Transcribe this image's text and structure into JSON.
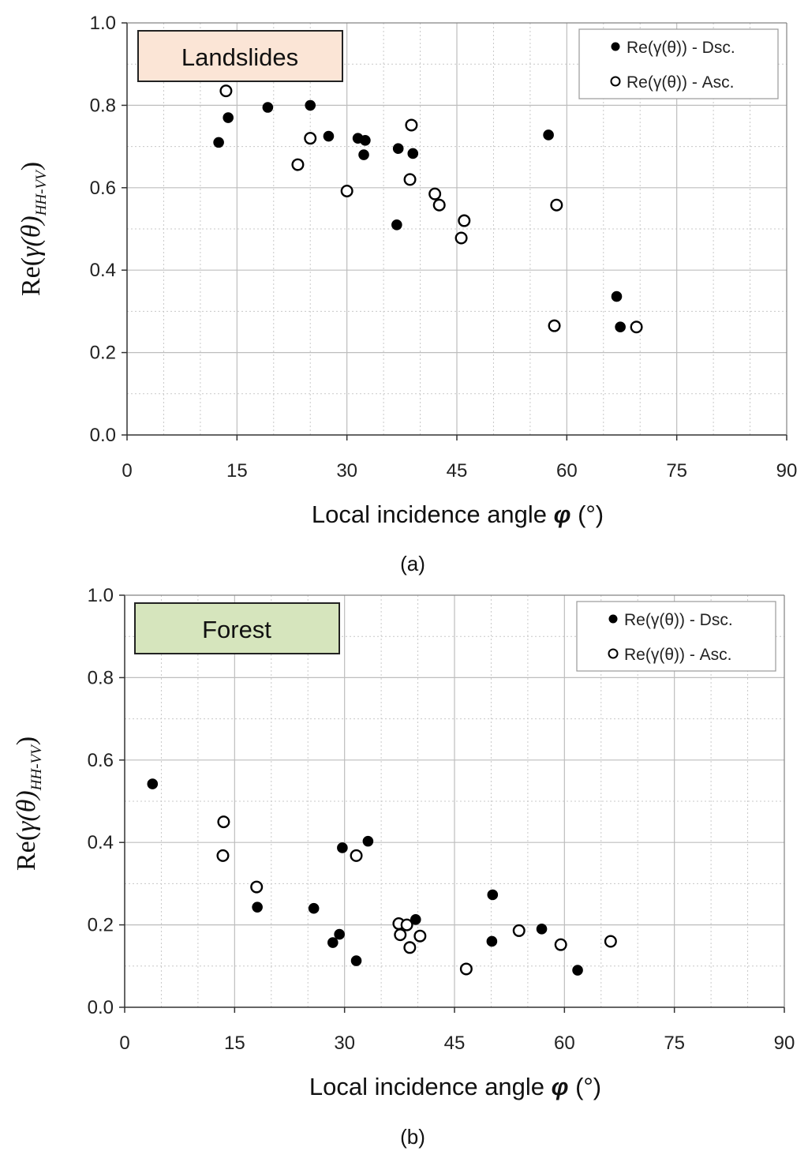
{
  "chart_data": [
    {
      "type": "scatter",
      "title": "Landslides",
      "title_bg": "#fbe5d6",
      "subtitle": "(a)",
      "xlabel_prefix": "Local incidence angle ",
      "xlabel_symbol": "φ",
      "xlabel_suffix": " (°)",
      "ylabel_prefix": "Re(",
      "ylabel_symbol": "γ(θ)",
      "ylabel_subscript": "HH-VV",
      "ylabel_suffix": ")",
      "xlim": [
        0,
        90
      ],
      "ylim": [
        0,
        1.0
      ],
      "xticks": [
        "0",
        "15",
        "30",
        "45",
        "60",
        "75",
        "90"
      ],
      "yticks": [
        "0.0",
        "0.2",
        "0.4",
        "0.6",
        "0.8",
        "1.0"
      ],
      "grid": true,
      "legend_position": "top-right",
      "series": [
        {
          "name": "Re(γ(θ)) - Dsc.",
          "marker": "filled-circle",
          "points": [
            [
              12.5,
              0.71
            ],
            [
              13.8,
              0.77
            ],
            [
              19.2,
              0.795
            ],
            [
              25.0,
              0.8
            ],
            [
              27.5,
              0.725
            ],
            [
              31.5,
              0.72
            ],
            [
              32.5,
              0.715
            ],
            [
              32.3,
              0.68
            ],
            [
              37.0,
              0.695
            ],
            [
              39.0,
              0.683
            ],
            [
              36.8,
              0.51
            ],
            [
              57.5,
              0.728
            ],
            [
              66.8,
              0.336
            ],
            [
              67.3,
              0.262
            ]
          ]
        },
        {
          "name": "Re(γ(θ)) - Asc.",
          "marker": "open-circle",
          "points": [
            [
              13.5,
              0.835
            ],
            [
              23.3,
              0.656
            ],
            [
              25.0,
              0.72
            ],
            [
              30.0,
              0.592
            ],
            [
              38.8,
              0.752
            ],
            [
              38.6,
              0.62
            ],
            [
              42.0,
              0.585
            ],
            [
              42.6,
              0.558
            ],
            [
              46.0,
              0.52
            ],
            [
              45.6,
              0.478
            ],
            [
              58.6,
              0.558
            ],
            [
              58.3,
              0.265
            ],
            [
              69.5,
              0.262
            ]
          ]
        }
      ]
    },
    {
      "type": "scatter",
      "title": "Forest",
      "title_bg": "#d6e5bd",
      "subtitle": "(b)",
      "xlabel_prefix": "Local incidence angle ",
      "xlabel_symbol": "φ",
      "xlabel_suffix": " (°)",
      "ylabel_prefix": "Re(",
      "ylabel_symbol": "γ(θ)",
      "ylabel_subscript": "HH-VV",
      "ylabel_suffix": ")",
      "xlim": [
        0,
        90
      ],
      "ylim": [
        0,
        1.0
      ],
      "xticks": [
        "0",
        "15",
        "30",
        "45",
        "60",
        "75",
        "90"
      ],
      "yticks": [
        "0.0",
        "0.2",
        "0.4",
        "0.6",
        "0.8",
        "1.0"
      ],
      "grid": true,
      "legend_position": "top-right",
      "series": [
        {
          "name": "Re(γ(θ)) - Dsc.",
          "marker": "filled-circle",
          "points": [
            [
              3.8,
              0.542
            ],
            [
              18.1,
              0.243
            ],
            [
              25.8,
              0.24
            ],
            [
              28.4,
              0.157
            ],
            [
              29.3,
              0.177
            ],
            [
              29.7,
              0.387
            ],
            [
              33.2,
              0.403
            ],
            [
              31.6,
              0.113
            ],
            [
              39.7,
              0.213
            ],
            [
              50.2,
              0.273
            ],
            [
              50.1,
              0.16
            ],
            [
              56.9,
              0.19
            ],
            [
              61.8,
              0.09
            ]
          ]
        },
        {
          "name": "Re(γ(θ)) - Asc.",
          "marker": "open-circle",
          "points": [
            [
              13.5,
              0.45
            ],
            [
              13.4,
              0.368
            ],
            [
              18.0,
              0.292
            ],
            [
              31.6,
              0.368
            ],
            [
              37.4,
              0.203
            ],
            [
              38.5,
              0.2
            ],
            [
              37.6,
              0.176
            ],
            [
              38.9,
              0.145
            ],
            [
              40.3,
              0.173
            ],
            [
              46.6,
              0.093
            ],
            [
              53.8,
              0.186
            ],
            [
              59.5,
              0.152
            ],
            [
              66.3,
              0.16
            ]
          ]
        }
      ]
    }
  ]
}
